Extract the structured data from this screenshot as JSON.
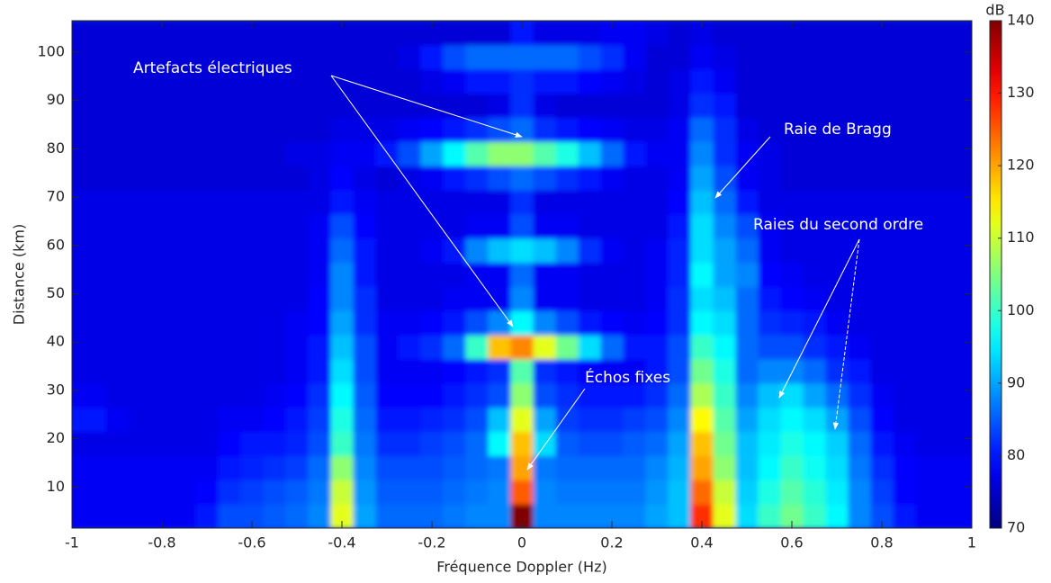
{
  "chart_data": {
    "type": "heatmap",
    "xlabel": "Fréquence Doppler (Hz)",
    "ylabel": "Distance (km)",
    "xlim": [
      -1,
      1
    ],
    "ylim": [
      1.5,
      106.5
    ],
    "xticks": [
      -1,
      -0.8,
      -0.6,
      -0.4,
      -0.2,
      0,
      0.2,
      0.4,
      0.6,
      0.8,
      1
    ],
    "yticks": [
      10,
      20,
      30,
      40,
      50,
      60,
      70,
      80,
      90,
      100
    ],
    "colorbar": {
      "label": "dB",
      "lim": [
        70,
        140
      ],
      "ticks": [
        70,
        80,
        90,
        100,
        110,
        120,
        130,
        140
      ],
      "colormap": "jet"
    },
    "annotations": [
      {
        "text": "Artefacts électriques"
      },
      {
        "text": "Raie de Bragg"
      },
      {
        "text": "Raies du second ordre"
      },
      {
        "text": "Échos fixes"
      }
    ],
    "x": [
      -1,
      -0.95,
      -0.9,
      -0.85,
      -0.8,
      -0.75,
      -0.7,
      -0.65,
      -0.6,
      -0.55,
      -0.5,
      -0.45,
      -0.4,
      -0.35,
      -0.3,
      -0.25,
      -0.2,
      -0.15,
      -0.1,
      -0.05,
      0,
      0.05,
      0.1,
      0.15,
      0.2,
      0.25,
      0.3,
      0.35,
      0.4,
      0.45,
      0.5,
      0.55,
      0.6,
      0.65,
      0.7,
      0.75,
      0.8,
      0.85,
      0.9,
      0.95,
      1
    ],
    "y": [
      4,
      9,
      14,
      19,
      24,
      29,
      34,
      39,
      44,
      49,
      54,
      59,
      64,
      69,
      74,
      79,
      84,
      89,
      94,
      99,
      104
    ],
    "z": [
      [
        78,
        78,
        78,
        78,
        78,
        78,
        80,
        84,
        84,
        85,
        86,
        88,
        112,
        90,
        86,
        86,
        86,
        87,
        88,
        88,
        140,
        88,
        88,
        88,
        88,
        88,
        90,
        92,
        128,
        112,
        94,
        100,
        104,
        100,
        96,
        88,
        84,
        80,
        78,
        78,
        78
      ],
      [
        78,
        78,
        78,
        78,
        78,
        78,
        79,
        82,
        83,
        84,
        85,
        87,
        110,
        89,
        85,
        85,
        85,
        86,
        87,
        88,
        125,
        88,
        87,
        87,
        87,
        87,
        89,
        92,
        124,
        110,
        93,
        98,
        102,
        99,
        95,
        88,
        83,
        79,
        78,
        78,
        78
      ],
      [
        78,
        78,
        78,
        78,
        78,
        78,
        78,
        80,
        81,
        82,
        83,
        86,
        106,
        88,
        84,
        84,
        84,
        85,
        86,
        87,
        120,
        87,
        86,
        86,
        86,
        86,
        88,
        91,
        120,
        106,
        92,
        96,
        100,
        97,
        94,
        87,
        82,
        79,
        78,
        78,
        78
      ],
      [
        77,
        77,
        77,
        77,
        77,
        77,
        77,
        79,
        80,
        80,
        81,
        84,
        100,
        87,
        82,
        82,
        83,
        84,
        86,
        96,
        118,
        94,
        85,
        84,
        84,
        85,
        86,
        90,
        118,
        104,
        92,
        95,
        98,
        96,
        93,
        86,
        80,
        78,
        77,
        77,
        77
      ],
      [
        80,
        80,
        78,
        77,
        77,
        77,
        77,
        78,
        78,
        79,
        80,
        83,
        98,
        86,
        80,
        80,
        81,
        82,
        84,
        92,
        112,
        90,
        83,
        82,
        82,
        83,
        84,
        88,
        114,
        102,
        90,
        94,
        96,
        94,
        90,
        84,
        79,
        77,
        77,
        77,
        77
      ],
      [
        78,
        78,
        77,
        77,
        77,
        77,
        77,
        77,
        77,
        78,
        79,
        82,
        96,
        85,
        79,
        79,
        79,
        80,
        82,
        84,
        106,
        84,
        82,
        80,
        80,
        80,
        82,
        86,
        108,
        100,
        88,
        92,
        94,
        90,
        86,
        82,
        78,
        77,
        77,
        77,
        77
      ],
      [
        77,
        77,
        77,
        77,
        77,
        77,
        77,
        77,
        77,
        77,
        78,
        80,
        94,
        84,
        78,
        78,
        78,
        79,
        80,
        82,
        102,
        82,
        80,
        79,
        78,
        78,
        80,
        84,
        104,
        98,
        86,
        88,
        88,
        86,
        82,
        80,
        77,
        77,
        77,
        77,
        77
      ],
      [
        77,
        77,
        77,
        77,
        77,
        77,
        77,
        77,
        77,
        77,
        78,
        80,
        92,
        84,
        78,
        80,
        82,
        86,
        100,
        118,
        122,
        112,
        104,
        94,
        86,
        80,
        80,
        84,
        100,
        96,
        86,
        84,
        84,
        82,
        80,
        78,
        77,
        77,
        77,
        77,
        77
      ],
      [
        77,
        77,
        77,
        77,
        77,
        77,
        77,
        77,
        77,
        77,
        78,
        79,
        90,
        82,
        78,
        78,
        79,
        80,
        84,
        88,
        96,
        88,
        84,
        80,
        79,
        78,
        79,
        82,
        96,
        94,
        86,
        82,
        81,
        80,
        78,
        77,
        77,
        77,
        77,
        77,
        77
      ],
      [
        77,
        77,
        77,
        77,
        77,
        77,
        77,
        77,
        77,
        77,
        77,
        79,
        88,
        82,
        77,
        77,
        77,
        78,
        78,
        78,
        88,
        78,
        78,
        77,
        77,
        77,
        78,
        82,
        94,
        92,
        86,
        80,
        79,
        78,
        77,
        77,
        77,
        77,
        77,
        77,
        77
      ],
      [
        77,
        77,
        77,
        77,
        77,
        77,
        77,
        77,
        77,
        77,
        77,
        78,
        88,
        80,
        77,
        77,
        77,
        77,
        78,
        78,
        86,
        78,
        78,
        77,
        77,
        77,
        78,
        81,
        96,
        90,
        88,
        79,
        78,
        77,
        77,
        77,
        77,
        77,
        77,
        77,
        77
      ],
      [
        77,
        77,
        77,
        77,
        77,
        77,
        77,
        77,
        77,
        77,
        77,
        78,
        86,
        80,
        77,
        77,
        78,
        80,
        88,
        92,
        94,
        92,
        88,
        82,
        78,
        77,
        78,
        81,
        94,
        90,
        86,
        78,
        77,
        77,
        77,
        77,
        77,
        77,
        77,
        77,
        77
      ],
      [
        77,
        77,
        77,
        77,
        77,
        77,
        77,
        77,
        77,
        77,
        77,
        78,
        84,
        79,
        77,
        77,
        77,
        77,
        78,
        78,
        84,
        78,
        78,
        77,
        77,
        77,
        77,
        80,
        94,
        88,
        84,
        78,
        77,
        77,
        77,
        77,
        77,
        77,
        77,
        77,
        77
      ],
      [
        77,
        77,
        77,
        77,
        77,
        77,
        77,
        77,
        77,
        77,
        77,
        77,
        80,
        78,
        77,
        77,
        77,
        77,
        77,
        77,
        82,
        77,
        77,
        77,
        77,
        77,
        77,
        79,
        92,
        86,
        80,
        77,
        77,
        77,
        77,
        77,
        77,
        77,
        77,
        77,
        77
      ],
      [
        76,
        76,
        76,
        76,
        76,
        76,
        76,
        76,
        76,
        76,
        76,
        77,
        79,
        77,
        76,
        77,
        78,
        80,
        82,
        84,
        86,
        84,
        82,
        80,
        78,
        77,
        77,
        78,
        90,
        84,
        78,
        77,
        76,
        76,
        76,
        76,
        76,
        76,
        76,
        76,
        76
      ],
      [
        76,
        76,
        76,
        76,
        76,
        76,
        76,
        76,
        76,
        76,
        77,
        77,
        78,
        78,
        80,
        84,
        90,
        96,
        102,
        106,
        106,
        102,
        98,
        92,
        86,
        80,
        78,
        78,
        88,
        82,
        78,
        77,
        76,
        76,
        76,
        76,
        76,
        76,
        76,
        76,
        76
      ],
      [
        76,
        76,
        76,
        76,
        76,
        76,
        76,
        76,
        76,
        76,
        76,
        76,
        77,
        77,
        77,
        78,
        79,
        80,
        82,
        84,
        86,
        82,
        80,
        79,
        78,
        77,
        77,
        78,
        86,
        82,
        77,
        76,
        76,
        76,
        76,
        76,
        76,
        76,
        76,
        76,
        76
      ],
      [
        76,
        76,
        76,
        76,
        76,
        76,
        76,
        76,
        76,
        76,
        76,
        76,
        76,
        76,
        76,
        76,
        76,
        76,
        76,
        77,
        82,
        77,
        76,
        76,
        76,
        76,
        76,
        77,
        82,
        80,
        76,
        76,
        76,
        76,
        76,
        76,
        76,
        76,
        76,
        76,
        76
      ],
      [
        76,
        76,
        76,
        76,
        76,
        76,
        76,
        76,
        76,
        76,
        76,
        76,
        76,
        76,
        76,
        76,
        77,
        78,
        80,
        80,
        82,
        80,
        80,
        79,
        78,
        77,
        76,
        77,
        80,
        78,
        76,
        76,
        76,
        76,
        76,
        76,
        76,
        76,
        76,
        76,
        76
      ],
      [
        76,
        76,
        76,
        76,
        76,
        76,
        76,
        76,
        76,
        76,
        76,
        76,
        76,
        76,
        76,
        77,
        80,
        84,
        86,
        86,
        86,
        86,
        86,
        84,
        82,
        78,
        76,
        76,
        78,
        77,
        76,
        76,
        76,
        76,
        76,
        76,
        76,
        76,
        76,
        76,
        76
      ],
      [
        76,
        76,
        76,
        76,
        76,
        76,
        76,
        76,
        76,
        76,
        76,
        76,
        76,
        76,
        76,
        76,
        76,
        76,
        76,
        76,
        80,
        77,
        77,
        77,
        78,
        78,
        77,
        76,
        77,
        76,
        76,
        76,
        76,
        76,
        76,
        76,
        76,
        76,
        76,
        76,
        76
      ]
    ]
  }
}
